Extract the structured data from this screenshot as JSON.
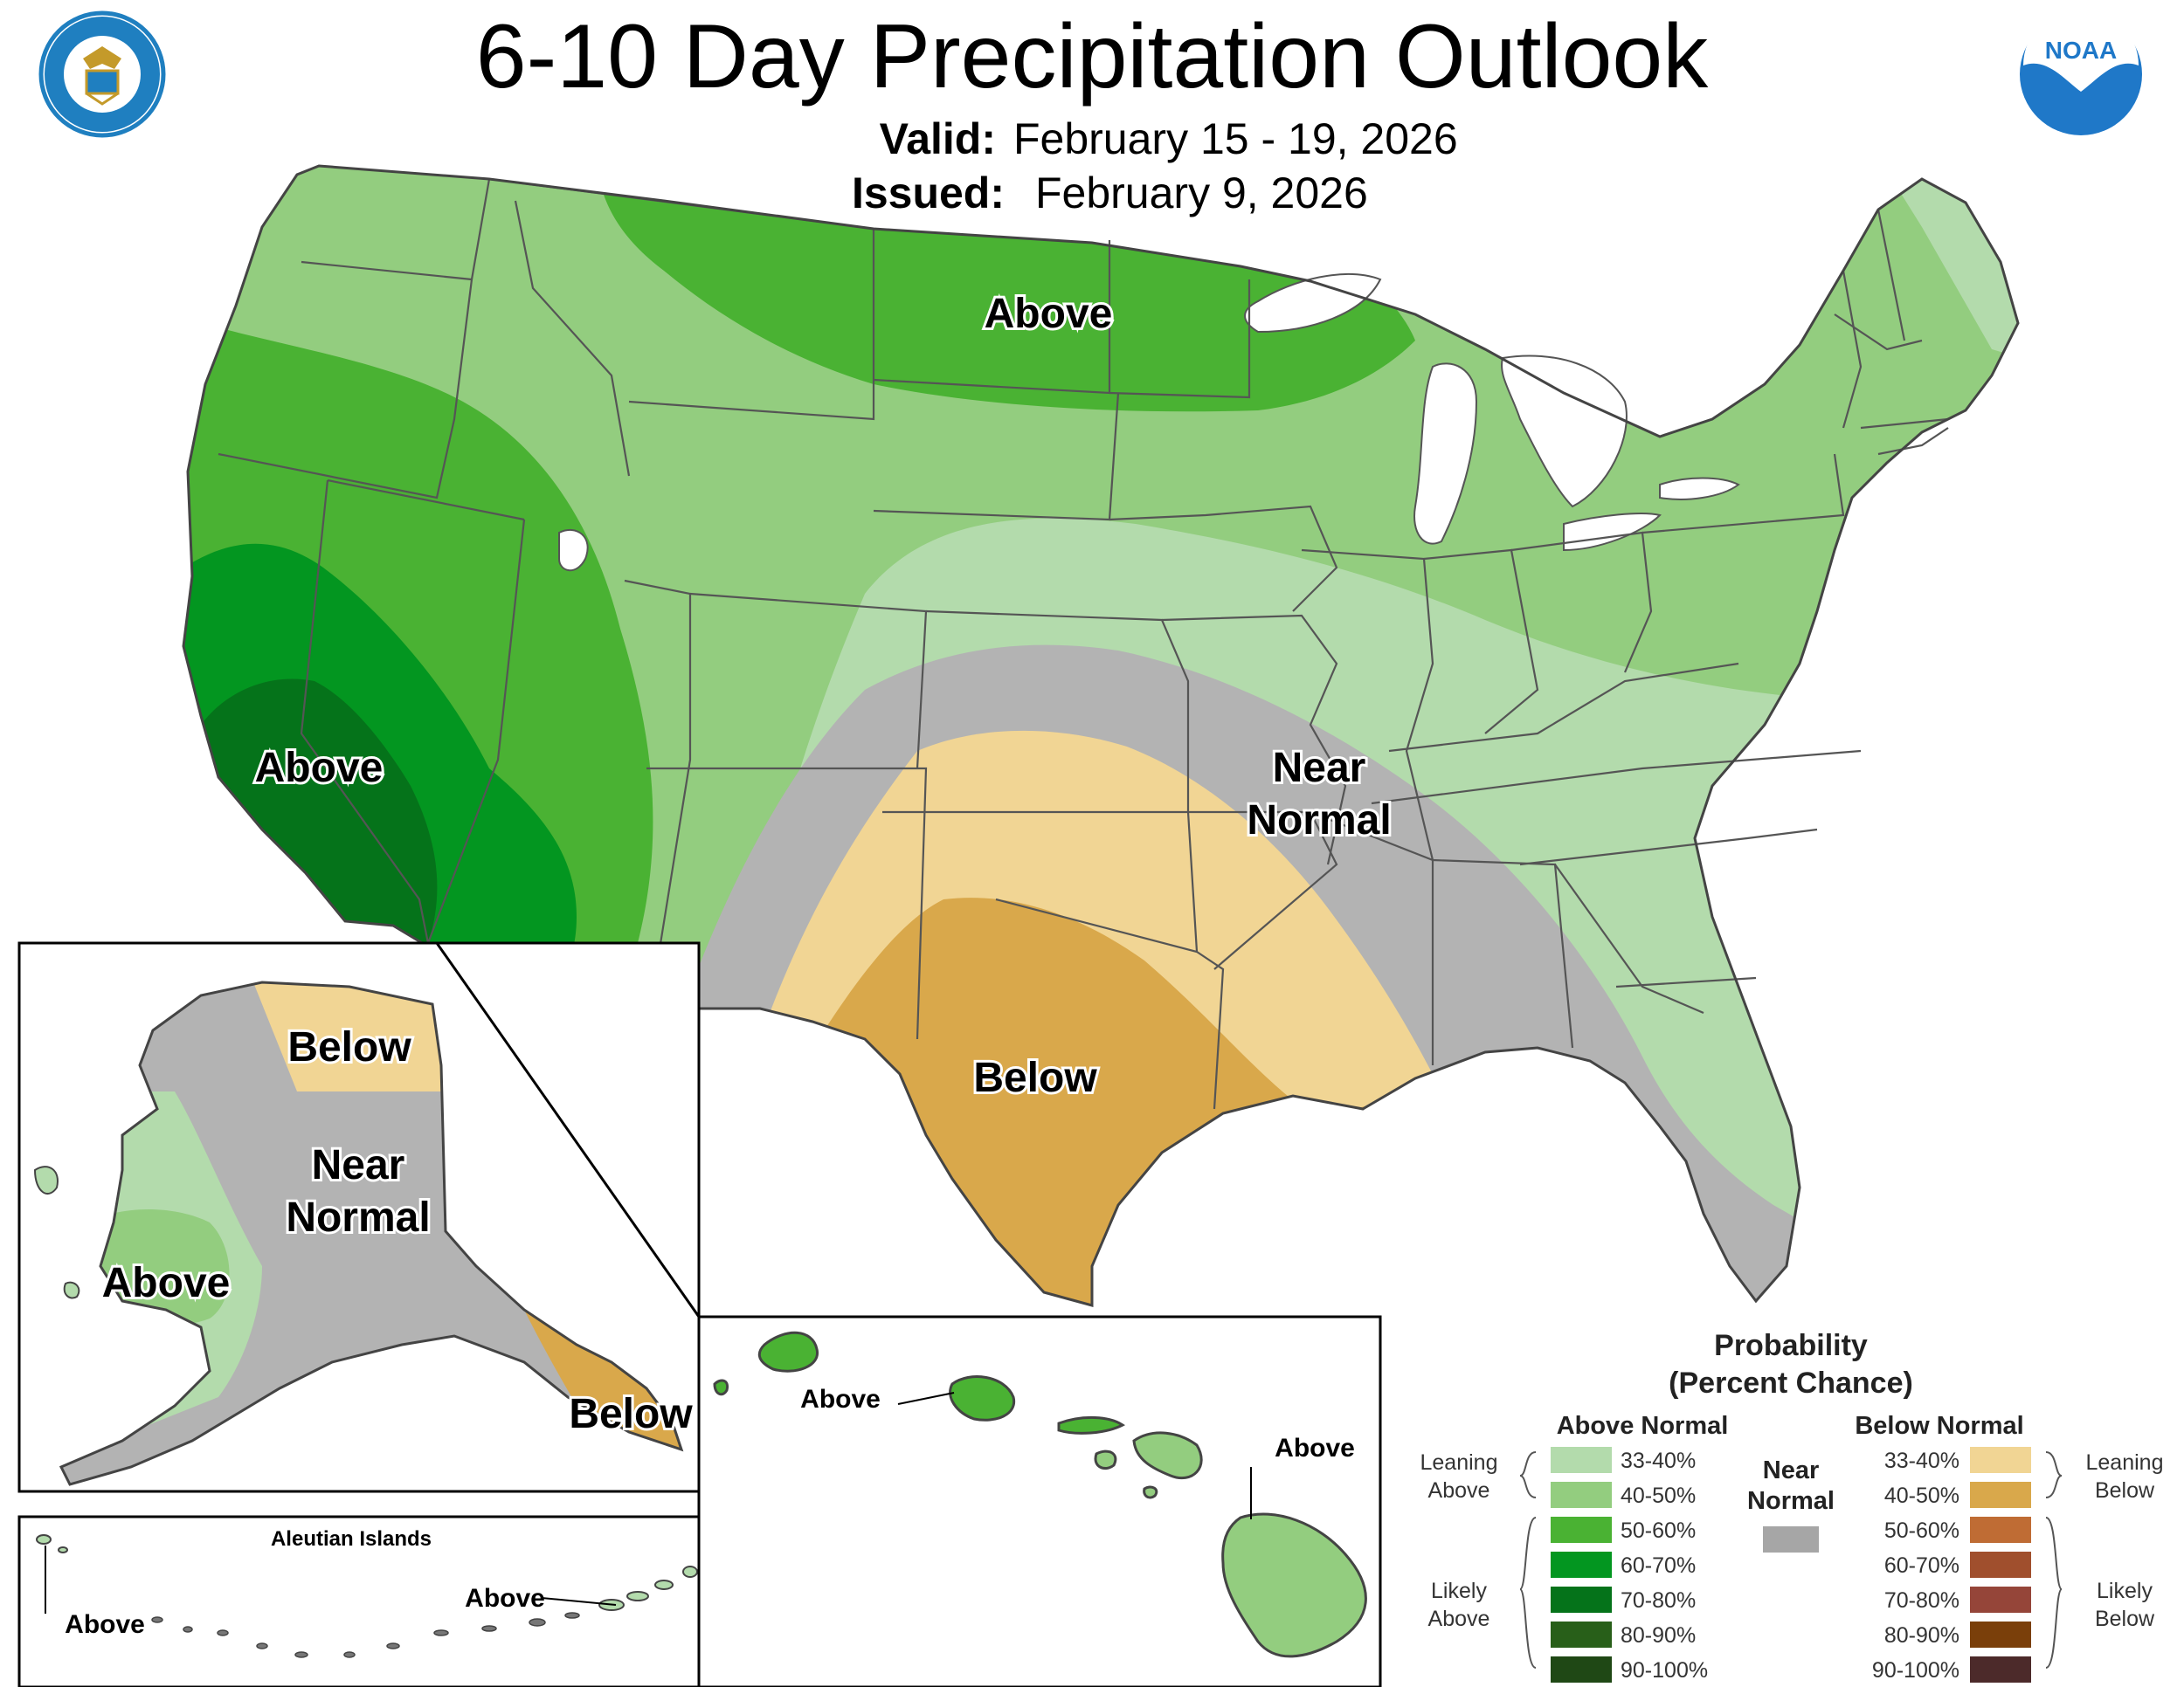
{
  "title": "6-10 Day Precipitation Outlook",
  "valid_label": "Valid:",
  "valid_value": "February 15 - 19, 2026",
  "issued_label": "Issued:",
  "issued_value": "February 9, 2026",
  "logos": {
    "commerce": {
      "icon": "department-of-commerce-seal",
      "color": "#1f7fc0"
    },
    "noaa": {
      "icon": "noaa-logo",
      "color": "#1f78c8"
    }
  },
  "colors": {
    "above_33_40": "#b3dbac",
    "above_40_50": "#93cd7f",
    "above_50_60": "#4ab233",
    "above_60_70": "#039620",
    "above_70_80": "#05731a",
    "above_80_90": "#285f19",
    "above_90_100": "#1f4815",
    "near_normal": "#b3b3b3",
    "below_33_40": "#f1d594",
    "below_40_50": "#d9a84b",
    "below_50_60": "#bf6c34",
    "below_60_70": "#a04f2d",
    "below_70_80": "#954539",
    "below_80_90": "#7a3f0a",
    "below_90_100": "#4c2a2a",
    "water": "#ffffff"
  },
  "map_labels": {
    "conus_above_north": "Above",
    "conus_above_west": "Above",
    "conus_near_normal_1": "Near",
    "conus_near_normal_2": "Normal",
    "conus_below": "Below",
    "alaska_below_north": "Below",
    "alaska_near_1": "Near",
    "alaska_near_2": "Normal",
    "alaska_above": "Above",
    "alaska_below_southeast": "Below",
    "aleutian_title": "Aleutian Islands",
    "aleutian_above_west": "Above",
    "aleutian_above_east": "Above",
    "hawaii_above_west": "Above",
    "hawaii_above_east": "Above"
  },
  "legend": {
    "title_1": "Probability",
    "title_2": "(Percent Chance)",
    "above_header": "Above Normal",
    "below_header": "Below Normal",
    "near_1": "Near",
    "near_2": "Normal",
    "leaning_above_1": "Leaning",
    "leaning_above_2": "Above",
    "likely_above_1": "Likely",
    "likely_above_2": "Above",
    "leaning_below_1": "Leaning",
    "leaning_below_2": "Below",
    "likely_below_1": "Likely",
    "likely_below_2": "Below",
    "ranges": [
      "33-40%",
      "40-50%",
      "50-60%",
      "60-70%",
      "70-80%",
      "80-90%",
      "90-100%"
    ]
  }
}
